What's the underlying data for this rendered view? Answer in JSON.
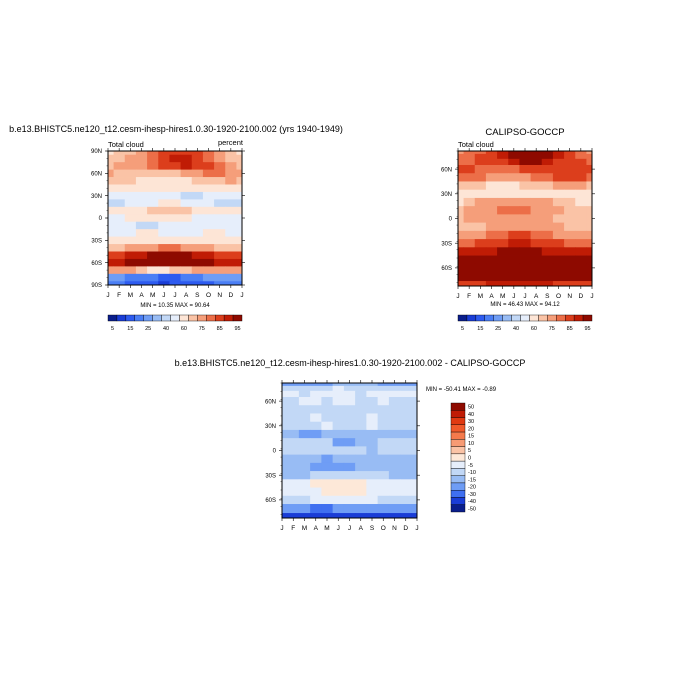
{
  "panels": [
    {
      "title": "b.e13.BHISTC5.ne120_t12.cesm-ihesp-hires1.0.30-1920-2100.002 (yrs 1940-1949)",
      "left_label": "Total cloud",
      "right_label": "percent",
      "stats": "MIN =  10.35 MAX =  90.64"
    },
    {
      "title": "CALIPSO-GOCCP",
      "left_label": "Total cloud",
      "right_label": "",
      "stats": "MIN =  46.43 MAX =  94.12"
    },
    {
      "title": "b.e13.BHISTC5.ne120_t12.cesm-ihesp-hires1.0.30-1920-2100.002 - CALIPSO-GOCCP",
      "left_label": "",
      "right_label": "",
      "stats": "MIN = -50.41 MAX =  -0.89"
    }
  ],
  "chart_data": [
    {
      "type": "heatmap",
      "title": "b.e13.BHISTC5.ne120_t12.cesm-ihesp-hires1.0.30-1920-2100.002 (yrs 1940-1949)",
      "variable": "Total cloud",
      "units": "percent",
      "x": [
        "J",
        "F",
        "M",
        "A",
        "M",
        "J",
        "J",
        "A",
        "S",
        "O",
        "N",
        "D",
        "J"
      ],
      "y_ticks": [
        "90N",
        "60N",
        "30N",
        "0",
        "30S",
        "60S",
        "90S"
      ],
      "latitudes": [
        90,
        80,
        70,
        60,
        50,
        40,
        30,
        20,
        10,
        0,
        -10,
        -20,
        -30,
        -40,
        -50,
        -60,
        -70,
        -80,
        -90
      ],
      "values": [
        [
          60,
          62,
          65,
          70,
          74,
          78,
          80,
          80,
          77,
          72,
          66,
          62,
          60
        ],
        [
          62,
          64,
          66,
          70,
          75,
          80,
          82,
          83,
          80,
          74,
          68,
          64,
          62
        ],
        [
          64,
          66,
          68,
          70,
          74,
          78,
          80,
          82,
          80,
          76,
          72,
          68,
          64
        ],
        [
          66,
          65,
          64,
          62,
          62,
          62,
          64,
          66,
          70,
          72,
          72,
          70,
          66
        ],
        [
          64,
          64,
          62,
          60,
          58,
          57,
          58,
          60,
          62,
          64,
          65,
          66,
          64
        ],
        [
          56,
          55,
          54,
          54,
          52,
          52,
          52,
          54,
          55,
          56,
          56,
          56,
          56
        ],
        [
          42,
          44,
          46,
          48,
          46,
          44,
          42,
          40,
          40,
          42,
          44,
          44,
          42
        ],
        [
          38,
          40,
          44,
          48,
          50,
          52,
          52,
          50,
          48,
          44,
          40,
          38,
          38
        ],
        [
          55,
          56,
          58,
          60,
          62,
          64,
          64,
          62,
          60,
          58,
          56,
          55,
          55
        ],
        [
          48,
          50,
          52,
          54,
          56,
          56,
          54,
          52,
          50,
          50,
          48,
          48,
          48
        ],
        [
          44,
          44,
          42,
          40,
          40,
          42,
          44,
          44,
          42,
          42,
          44,
          44,
          44
        ],
        [
          50,
          50,
          50,
          52,
          52,
          50,
          48,
          48,
          50,
          52,
          52,
          50,
          50
        ],
        [
          52,
          52,
          54,
          56,
          56,
          56,
          56,
          54,
          54,
          54,
          52,
          52,
          52
        ],
        [
          64,
          64,
          66,
          68,
          70,
          72,
          72,
          70,
          68,
          66,
          64,
          64,
          64
        ],
        [
          80,
          80,
          82,
          84,
          86,
          88,
          88,
          86,
          84,
          82,
          80,
          80,
          80
        ],
        [
          84,
          84,
          86,
          88,
          88,
          90,
          90,
          88,
          88,
          86,
          84,
          84,
          84
        ],
        [
          70,
          70,
          66,
          62,
          60,
          60,
          62,
          64,
          66,
          68,
          70,
          70,
          70
        ],
        [
          22,
          22,
          20,
          18,
          16,
          14,
          15,
          18,
          20,
          22,
          22,
          22,
          22
        ],
        [
          16,
          16,
          14,
          12,
          11,
          10,
          11,
          12,
          14,
          15,
          16,
          16,
          16
        ]
      ],
      "colorbar_labels": [
        "5",
        "15",
        "25",
        "40",
        "60",
        "75",
        "85",
        "95"
      ],
      "min": 10.35,
      "max": 90.64
    },
    {
      "type": "heatmap",
      "title": "CALIPSO-GOCCP",
      "variable": "Total cloud",
      "x": [
        "J",
        "F",
        "M",
        "A",
        "M",
        "J",
        "J",
        "A",
        "S",
        "O",
        "N",
        "D",
        "J"
      ],
      "y_ticks": [
        "60N",
        "30N",
        "0",
        "30S",
        "60S"
      ],
      "latitudes": [
        82,
        75,
        70,
        60,
        50,
        40,
        30,
        20,
        10,
        0,
        -10,
        -20,
        -30,
        -40,
        -50,
        -60,
        -70,
        -82
      ],
      "values": [
        [
          70,
          72,
          75,
          80,
          85,
          88,
          90,
          92,
          88,
          82,
          78,
          74,
          70
        ],
        [
          72,
          74,
          76,
          80,
          84,
          88,
          90,
          92,
          90,
          84,
          78,
          74,
          72
        ],
        [
          72,
          74,
          76,
          78,
          80,
          84,
          86,
          86,
          84,
          80,
          78,
          76,
          72
        ],
        [
          76,
          76,
          74,
          72,
          72,
          74,
          76,
          78,
          80,
          80,
          80,
          78,
          76
        ],
        [
          74,
          74,
          72,
          70,
          68,
          68,
          70,
          72,
          74,
          76,
          76,
          76,
          74
        ],
        [
          64,
          64,
          62,
          60,
          60,
          60,
          62,
          62,
          64,
          66,
          66,
          66,
          64
        ],
        [
          56,
          56,
          58,
          58,
          56,
          54,
          54,
          54,
          54,
          56,
          56,
          56,
          56
        ],
        [
          60,
          62,
          66,
          68,
          70,
          70,
          70,
          68,
          66,
          64,
          62,
          60,
          60
        ],
        [
          64,
          66,
          68,
          70,
          72,
          72,
          72,
          70,
          68,
          66,
          64,
          64,
          64
        ],
        [
          64,
          66,
          66,
          68,
          68,
          68,
          68,
          68,
          66,
          64,
          64,
          64,
          64
        ],
        [
          64,
          64,
          64,
          66,
          68,
          70,
          70,
          68,
          66,
          66,
          64,
          64,
          64
        ],
        [
          68,
          68,
          70,
          72,
          74,
          76,
          76,
          74,
          72,
          70,
          68,
          68,
          68
        ],
        [
          74,
          74,
          76,
          78,
          80,
          82,
          82,
          80,
          78,
          76,
          74,
          74,
          74
        ],
        [
          82,
          82,
          84,
          84,
          86,
          86,
          86,
          86,
          84,
          84,
          82,
          82,
          82
        ],
        [
          88,
          88,
          88,
          90,
          90,
          92,
          92,
          90,
          90,
          88,
          88,
          88,
          88
        ],
        [
          92,
          92,
          92,
          93,
          93,
          94,
          94,
          93,
          92,
          92,
          92,
          92,
          92
        ],
        [
          86,
          86,
          86,
          88,
          88,
          88,
          88,
          88,
          86,
          86,
          86,
          86,
          86
        ],
        [
          80,
          80,
          80,
          82,
          82,
          84,
          84,
          82,
          82,
          80,
          80,
          80,
          80
        ]
      ],
      "colorbar_labels": [
        "5",
        "15",
        "25",
        "40",
        "60",
        "75",
        "85",
        "95"
      ],
      "min": 46.43,
      "max": 94.12
    },
    {
      "type": "heatmap",
      "title": "b.e13.BHISTC5.ne120_t12.cesm-ihesp-hires1.0.30-1920-2100.002 - CALIPSO-GOCCP",
      "x": [
        "J",
        "F",
        "M",
        "A",
        "M",
        "J",
        "J",
        "A",
        "S",
        "O",
        "N",
        "D",
        "J"
      ],
      "y_ticks": [
        "60N",
        "30N",
        "0",
        "30S",
        "60S"
      ],
      "latitudes": [
        82,
        75,
        70,
        60,
        50,
        40,
        30,
        20,
        10,
        0,
        -10,
        -20,
        -30,
        -40,
        -50,
        -60,
        -70,
        -82
      ],
      "values": [
        [
          -22,
          -22,
          -24,
          -24,
          -22,
          -18,
          -16,
          -16,
          -18,
          -20,
          -22,
          -22,
          -22
        ],
        [
          -12,
          -12,
          -14,
          -12,
          -10,
          -8,
          -10,
          -12,
          -12,
          -12,
          -12,
          -12,
          -12
        ],
        [
          -8,
          -8,
          -10,
          -8,
          -8,
          -6,
          -8,
          -10,
          -8,
          -8,
          -8,
          -8,
          -8
        ],
        [
          -10,
          -10,
          -8,
          -8,
          -10,
          -8,
          -8,
          -10,
          -10,
          -8,
          -10,
          -10,
          -10
        ],
        [
          -12,
          -12,
          -10,
          -10,
          -12,
          -12,
          -12,
          -12,
          -10,
          -12,
          -12,
          -12,
          -12
        ],
        [
          -10,
          -10,
          -10,
          -8,
          -10,
          -10,
          -10,
          -10,
          -8,
          -10,
          -10,
          -10,
          -10
        ],
        [
          -10,
          -10,
          -12,
          -10,
          -8,
          -10,
          -10,
          -10,
          -8,
          -10,
          -10,
          -10,
          -10
        ],
        [
          -18,
          -18,
          -20,
          -20,
          -18,
          -18,
          -16,
          -18,
          -18,
          -18,
          -18,
          -18,
          -18
        ],
        [
          -12,
          -12,
          -14,
          -14,
          -14,
          -20,
          -20,
          -18,
          -16,
          -14,
          -12,
          -12,
          -12
        ],
        [
          -14,
          -14,
          -14,
          -12,
          -12,
          -14,
          -14,
          -14,
          -16,
          -14,
          -14,
          -14,
          -14
        ],
        [
          -18,
          -18,
          -16,
          -18,
          -20,
          -18,
          -16,
          -16,
          -16,
          -18,
          -18,
          -18,
          -18
        ],
        [
          -18,
          -18,
          -18,
          -20,
          -20,
          -20,
          -20,
          -18,
          -18,
          -18,
          -18,
          -18,
          -18
        ],
        [
          -16,
          -16,
          -16,
          -14,
          -14,
          -14,
          -14,
          -14,
          -14,
          -14,
          -16,
          -16,
          -16
        ],
        [
          -8,
          -8,
          -6,
          -4,
          -4,
          -4,
          -4,
          -4,
          -6,
          -8,
          -8,
          -8,
          -8
        ],
        [
          -8,
          -8,
          -6,
          -6,
          -4,
          -4,
          -4,
          -4,
          -6,
          -6,
          -8,
          -8,
          -8
        ],
        [
          -10,
          -10,
          -10,
          -8,
          -8,
          -8,
          -8,
          -8,
          -8,
          -10,
          -10,
          -10,
          -10
        ],
        [
          -28,
          -28,
          -26,
          -30,
          -30,
          -28,
          -26,
          -26,
          -28,
          -28,
          -28,
          -28,
          -28
        ],
        [
          -44,
          -44,
          -42,
          -44,
          -46,
          -48,
          -48,
          -46,
          -44,
          -44,
          -44,
          -44,
          -44
        ]
      ],
      "colorbar_labels": [
        "50",
        "40",
        "30",
        "20",
        "15",
        "10",
        "5",
        "0",
        "-5",
        "-10",
        "-15",
        "-20",
        "-30",
        "-40",
        "-50"
      ],
      "min": -50.41,
      "max": -0.89
    }
  ],
  "colors": {
    "seq": [
      "#0a1e8c",
      "#1a3dd6",
      "#2d5bf0",
      "#4a7ef5",
      "#6f9df5",
      "#98bcf4",
      "#c2d8f6",
      "#e6eefb",
      "#fde5d6",
      "#fac3a6",
      "#f59e7a",
      "#ec6e48",
      "#dc3e1c",
      "#c01c05",
      "#8e0a00"
    ],
    "diff": [
      "#8e0a00",
      "#c01c05",
      "#e03a12",
      "#f05a2b",
      "#f47a4c",
      "#f79b74",
      "#fac3a6",
      "#fde8d8",
      "#e6eefb",
      "#c2d8f6",
      "#98bcf4",
      "#6f9df5",
      "#3f6ff0",
      "#1a3dd6",
      "#0a1e8c"
    ]
  }
}
